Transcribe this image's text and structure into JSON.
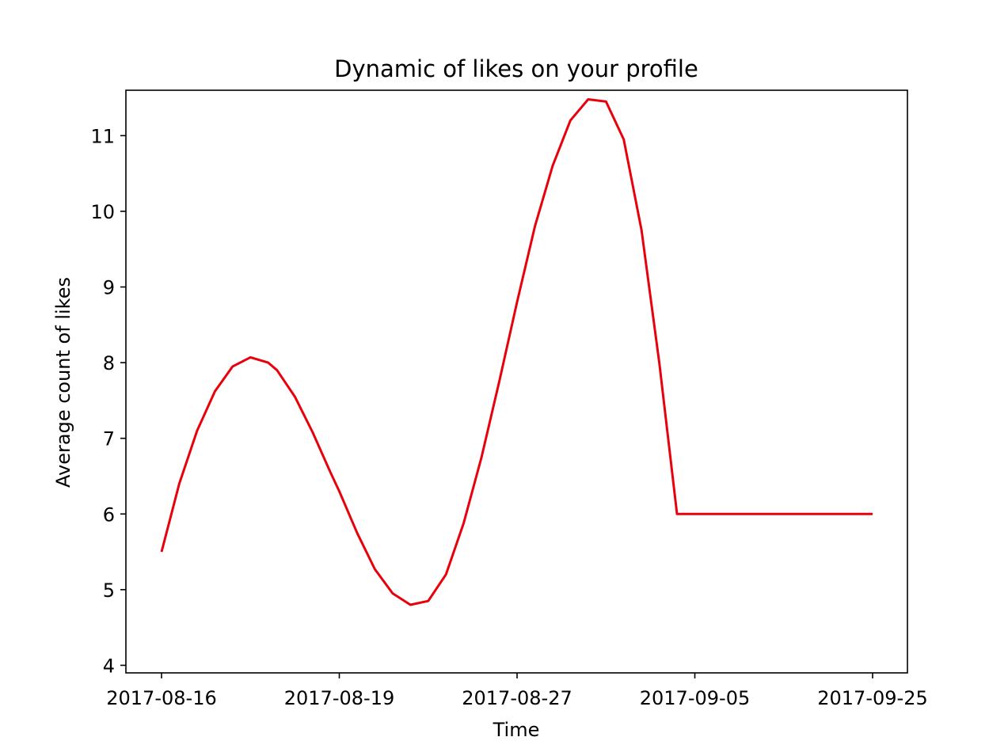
{
  "chart_data": {
    "type": "line",
    "title": "Dynamic of likes on your profile",
    "xlabel": "Time",
    "ylabel": "Average count of likes",
    "x_tick_labels": [
      "2017-08-16",
      "2017-08-19",
      "2017-08-27",
      "2017-09-05",
      "2017-09-25"
    ],
    "y_ticks": [
      4,
      5,
      6,
      7,
      8,
      9,
      10,
      11
    ],
    "ylim": [
      3.9,
      11.6
    ],
    "grid": false,
    "series": [
      {
        "color": "#e8000b",
        "x": [
          0.0,
          0.05,
          0.1,
          0.2,
          0.3,
          0.4,
          0.5,
          0.6,
          0.65,
          0.75,
          0.85,
          0.95,
          1.0,
          1.1,
          1.2,
          1.3,
          1.4,
          1.5,
          1.6,
          1.7,
          1.8,
          1.9,
          2.0,
          2.1,
          2.2,
          2.3,
          2.4,
          2.5,
          2.6,
          2.7,
          2.8,
          2.9,
          3.0,
          3.1,
          3.2,
          3.3,
          3.4,
          3.5,
          3.6,
          3.7,
          3.8,
          3.9,
          4.0
        ],
        "y": [
          5.5,
          5.95,
          6.4,
          7.1,
          7.62,
          7.95,
          8.07,
          8.0,
          7.9,
          7.55,
          7.08,
          6.55,
          6.3,
          5.75,
          5.27,
          4.95,
          4.8,
          4.85,
          5.2,
          5.88,
          6.75,
          7.75,
          8.8,
          9.8,
          10.6,
          11.2,
          11.48,
          11.45,
          10.95,
          9.75,
          8.0,
          6.0,
          6.0,
          6.0,
          6.0,
          6.0,
          6.0,
          6.0,
          6.0,
          6.0,
          6.0,
          6.0,
          6.0
        ]
      }
    ]
  }
}
